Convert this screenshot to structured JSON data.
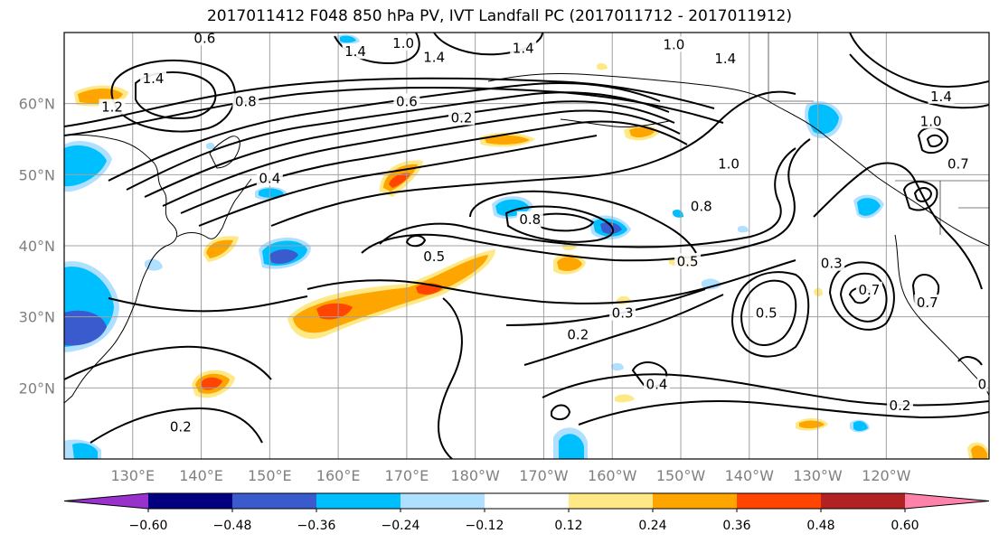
{
  "title": "2017011412 F048 850 hPa PV, IVT Landfall PC (2017011712 - 2017011912)",
  "map": {
    "lon_range_deg_east": [
      120,
      255
    ],
    "lat_range": [
      10,
      70
    ],
    "lat_ticks": [
      {
        "lat": 20,
        "label": "20°N"
      },
      {
        "lat": 30,
        "label": "30°N"
      },
      {
        "lat": 40,
        "label": "40°N"
      },
      {
        "lat": 50,
        "label": "50°N"
      },
      {
        "lat": 60,
        "label": "60°N"
      }
    ],
    "lon_ticks": [
      {
        "lon": 130,
        "label": "130°E"
      },
      {
        "lon": 140,
        "label": "140°E"
      },
      {
        "lon": 150,
        "label": "150°E"
      },
      {
        "lon": 160,
        "label": "160°E"
      },
      {
        "lon": 170,
        "label": "170°E"
      },
      {
        "lon": 180,
        "label": "180°W"
      },
      {
        "lon": 190,
        "label": "170°W"
      },
      {
        "lon": 200,
        "label": "160°W"
      },
      {
        "lon": 210,
        "label": "150°W"
      },
      {
        "lon": 220,
        "label": "140°W"
      },
      {
        "lon": 230,
        "label": "130°W"
      },
      {
        "lon": 240,
        "label": "120°W"
      }
    ],
    "grid": true,
    "contour_labels": [
      {
        "text": "0.6",
        "lon": 140.5,
        "lat": 69.2
      },
      {
        "text": "1.0",
        "lon": 169.5,
        "lat": 68.5
      },
      {
        "text": "1.4",
        "lon": 162.5,
        "lat": 67.3
      },
      {
        "text": "1.4",
        "lon": 174,
        "lat": 66.5
      },
      {
        "text": "1.4",
        "lon": 187,
        "lat": 67.8
      },
      {
        "text": "1.0",
        "lon": 209,
        "lat": 68.3
      },
      {
        "text": "1.4",
        "lon": 216.5,
        "lat": 66.3
      },
      {
        "text": "1.4",
        "lon": 133,
        "lat": 63.5
      },
      {
        "text": "1.2",
        "lon": 127,
        "lat": 59.5
      },
      {
        "text": "0.8",
        "lon": 146.5,
        "lat": 60.3
      },
      {
        "text": "0.6",
        "lon": 170,
        "lat": 60.3
      },
      {
        "text": "0.2",
        "lon": 178,
        "lat": 58
      },
      {
        "text": "0.4",
        "lon": 150,
        "lat": 49.5
      },
      {
        "text": "0.8",
        "lon": 188,
        "lat": 43.7
      },
      {
        "text": "0.8",
        "lon": 213,
        "lat": 45.5
      },
      {
        "text": "1.0",
        "lon": 217,
        "lat": 51.5
      },
      {
        "text": "1.4",
        "lon": 248,
        "lat": 61
      },
      {
        "text": "1.0",
        "lon": 246.5,
        "lat": 57.5
      },
      {
        "text": "0.7",
        "lon": 250.5,
        "lat": 51.5
      },
      {
        "text": "0.5",
        "lon": 174,
        "lat": 38.5
      },
      {
        "text": "0.5",
        "lon": 211,
        "lat": 37.8
      },
      {
        "text": "0.3",
        "lon": 232,
        "lat": 37.5
      },
      {
        "text": "0.7",
        "lon": 237.5,
        "lat": 33.8
      },
      {
        "text": "0.7",
        "lon": 246,
        "lat": 32
      },
      {
        "text": "0.5",
        "lon": 222.5,
        "lat": 30.5
      },
      {
        "text": "0.3",
        "lon": 201.5,
        "lat": 30.5
      },
      {
        "text": "0.2",
        "lon": 195,
        "lat": 27.5
      },
      {
        "text": "0.4",
        "lon": 206.5,
        "lat": 20.5
      },
      {
        "text": "0.2",
        "lon": 137,
        "lat": 14.5
      },
      {
        "text": "0.2",
        "lon": 242,
        "lat": 17.5
      },
      {
        "text": "0",
        "lon": 254,
        "lat": 20.5
      }
    ]
  },
  "colorbar": {
    "colors": [
      "#9932cc",
      "#000080",
      "#3a5bcd",
      "#00bfff",
      "#b0e0ff",
      "#ffffff",
      "#ffe986",
      "#ffa500",
      "#ff4500",
      "#b22222",
      "#ff82ab"
    ],
    "tick_labels": [
      "−0.60",
      "−0.48",
      "−0.36",
      "−0.24",
      "−0.12",
      "0.12",
      "0.24",
      "0.36",
      "0.48",
      "0.60"
    ]
  }
}
